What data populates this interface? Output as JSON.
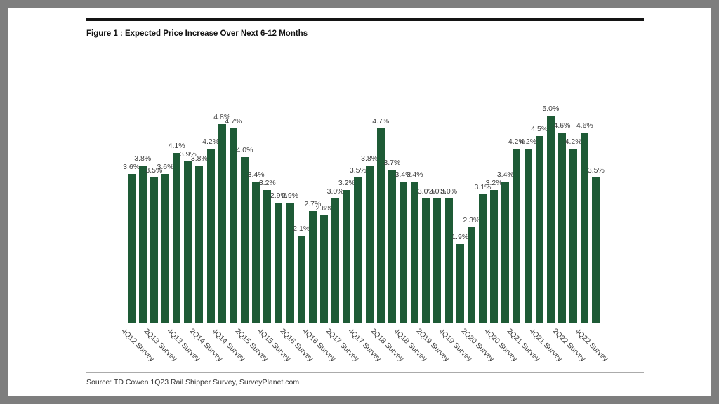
{
  "page": {
    "frame_color": "#7e7e7e",
    "card_color": "#ffffff"
  },
  "figure": {
    "title": "Figure 1 : Expected Price Increase Over Next 6-12 Months",
    "source": "Source: TD Cowen 1Q23 Rail Shipper Survey, SurveyPlanet.com"
  },
  "chart_data": {
    "type": "bar",
    "title": "Figure 1 : Expected Price Increase Over Next 6-12 Months",
    "ylabel": "",
    "xlabel": "",
    "values": [
      3.6,
      3.8,
      3.5,
      3.6,
      4.1,
      3.9,
      3.8,
      4.2,
      4.8,
      4.7,
      4.0,
      3.4,
      3.2,
      2.9,
      2.9,
      2.1,
      2.7,
      2.6,
      3.0,
      3.2,
      3.5,
      3.8,
      4.7,
      3.7,
      3.4,
      3.4,
      3.0,
      3.0,
      3.0,
      1.9,
      2.3,
      3.1,
      3.2,
      3.4,
      4.2,
      4.2,
      4.5,
      5.0,
      4.6,
      4.2,
      4.6,
      3.5
    ],
    "data_labels_visible": true,
    "data_label_suffix": "%",
    "x_tick_labels": [
      "4Q12 Survey",
      "2Q13 Survey",
      "4Q13 Survey",
      "2Q14 Survey",
      "4Q14 Survey",
      "2Q15 Survey",
      "4Q15 Survey",
      "2Q16 Survey",
      "4Q16 Survey",
      "2Q17 Survey",
      "4Q17 Survey",
      "2Q18 Survey",
      "4Q18 Survey",
      "2Q19 Survey",
      "4Q19 Survey",
      "2Q20 Survey",
      "4Q20 Survey",
      "2Q21 Survey",
      "4Q21 Survey",
      "2Q22 Survey",
      "4Q22 Survey"
    ],
    "x_tick_positions": [
      0,
      2,
      4,
      6,
      8,
      10,
      12,
      14,
      16,
      18,
      20,
      22,
      24,
      26,
      28,
      30,
      32,
      34,
      36,
      38,
      40
    ],
    "x_tick_rotation_deg": 45,
    "ylim": [
      0,
      5.2
    ],
    "grid": false,
    "legend": false,
    "bar_color": "#1e5b36",
    "data_label_color": "#3f3f3f",
    "axis_line_color": "#c6c6c6"
  }
}
